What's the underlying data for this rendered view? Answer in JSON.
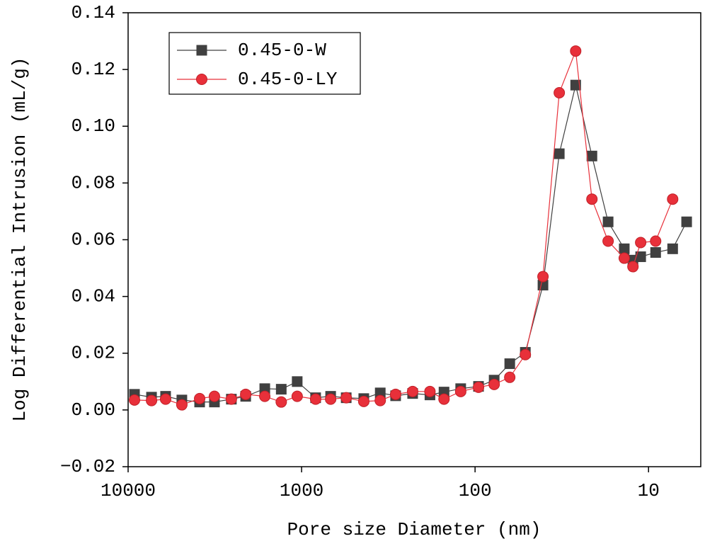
{
  "chart_data": {
    "type": "line",
    "xlabel": "Pore size Diameter (nm)",
    "ylabel": "Log Differential Intrusion (mL/g)",
    "xscale": "log",
    "xlim": [
      10000,
      5
    ],
    "xticks": [
      10000,
      1000,
      100,
      10
    ],
    "ylim": [
      -0.02,
      0.14
    ],
    "yticks": [
      {
        "value": -0.02,
        "label": "−0.02"
      },
      {
        "value": 0,
        "label": "0.00"
      },
      {
        "value": 0.02,
        "label": "0.02"
      },
      {
        "value": 0.04,
        "label": "0.04"
      },
      {
        "value": 0.06,
        "label": "0.06"
      },
      {
        "value": 0.08,
        "label": "0.08"
      },
      {
        "value": 0.1,
        "label": "0.10"
      },
      {
        "value": 0.12,
        "label": "0.12"
      },
      {
        "value": 0.14,
        "label": "0.14"
      }
    ],
    "legend": "upper left",
    "series": [
      {
        "name": "0.45-0-W",
        "color": "#404040",
        "marker": "square",
        "x": [
          9190,
          7330,
          6080,
          4900,
          3870,
          3180,
          2540,
          2100,
          1630,
          1310,
          1060,
          830,
          680,
          553,
          438,
          352,
          287,
          229,
          182,
          151,
          121,
          95.5,
          77.6,
          63.1,
          51.3,
          40.6,
          32.7,
          26.3,
          21.2,
          17.1,
          13.8,
          12.3,
          11.1,
          9.1,
          7.26,
          6.03
        ],
        "values": [
          0.0055,
          0.0045,
          0.0048,
          0.0035,
          0.0028,
          0.0028,
          0.0038,
          0.0048,
          0.0075,
          0.0073,
          0.01,
          0.0043,
          0.0048,
          0.0043,
          0.004,
          0.006,
          0.005,
          0.0058,
          0.0053,
          0.0063,
          0.0075,
          0.0083,
          0.0105,
          0.0163,
          0.0203,
          0.044,
          0.0903,
          0.1145,
          0.0895,
          0.0663,
          0.0568,
          0.0528,
          0.054,
          0.0555,
          0.0568,
          0.0663
        ]
      },
      {
        "name": "0.45-0-LY",
        "color": "#e8303a",
        "marker": "circle",
        "x": [
          9190,
          7330,
          6080,
          4900,
          3870,
          3180,
          2540,
          2100,
          1630,
          1310,
          1060,
          830,
          680,
          553,
          438,
          352,
          287,
          229,
          182,
          151,
          121,
          95.5,
          77.6,
          63.1,
          51.3,
          40.6,
          32.7,
          26.3,
          21.2,
          17.1,
          13.8,
          12.3,
          11.1,
          9.1,
          7.26
        ],
        "values": [
          0.0035,
          0.0033,
          0.0038,
          0.0018,
          0.004,
          0.0048,
          0.0038,
          0.0055,
          0.0048,
          0.0028,
          0.0048,
          0.0038,
          0.0038,
          0.0043,
          0.003,
          0.0033,
          0.0055,
          0.0065,
          0.0065,
          0.0038,
          0.0065,
          0.008,
          0.009,
          0.0115,
          0.0195,
          0.047,
          0.1118,
          0.1265,
          0.0743,
          0.0595,
          0.0535,
          0.0505,
          0.059,
          0.0595,
          0.0743
        ]
      }
    ]
  }
}
